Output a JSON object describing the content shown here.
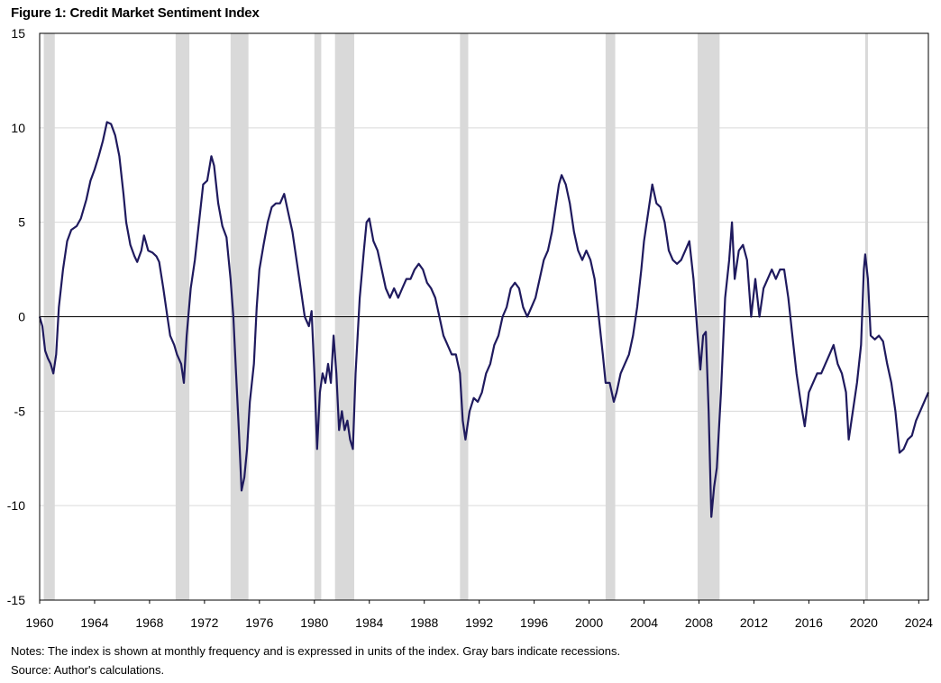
{
  "title": "Figure 1: Credit Market Sentiment Index",
  "notes": "Notes: The index is shown at monthly frequency and is expressed in units of the index. Gray bars indicate recessions.",
  "source": "Source: Author's calculations.",
  "chart_data": {
    "type": "line",
    "title": "Figure 1: Credit Market Sentiment Index",
    "xlabel": "",
    "ylabel": "",
    "xlim": [
      1960,
      2024.7
    ],
    "ylim": [
      -15,
      15
    ],
    "x_ticks": [
      "1960",
      "1964",
      "1968",
      "1972",
      "1976",
      "1980",
      "1984",
      "1988",
      "1992",
      "1996",
      "2000",
      "2004",
      "2008",
      "2012",
      "2016",
      "2020",
      "2024"
    ],
    "y_ticks": [
      "15",
      "10",
      "5",
      "0",
      "-5",
      "-10",
      "-15"
    ],
    "grid": "horizontal",
    "colors": {
      "line": "#1f1a5e",
      "recession": "#d9d9d9",
      "grid": "#d9d9d9",
      "zero": "#000000"
    },
    "recessions": [
      [
        1960.3,
        1961.1
      ],
      [
        1969.9,
        1970.9
      ],
      [
        1973.9,
        1975.2
      ],
      [
        1980.0,
        1980.5
      ],
      [
        1981.5,
        1982.9
      ],
      [
        1990.6,
        1991.2
      ],
      [
        2001.2,
        2001.9
      ],
      [
        2007.9,
        2009.5
      ],
      [
        2020.1,
        2020.3
      ]
    ],
    "series": [
      {
        "values": [
          [
            1960.0,
            0.0
          ],
          [
            1960.2,
            -0.5
          ],
          [
            1960.4,
            -1.8
          ],
          [
            1960.6,
            -2.2
          ],
          [
            1960.8,
            -2.5
          ],
          [
            1961.0,
            -3.0
          ],
          [
            1961.2,
            -2.0
          ],
          [
            1961.4,
            0.5
          ],
          [
            1961.7,
            2.5
          ],
          [
            1962.0,
            4.0
          ],
          [
            1962.3,
            4.6
          ],
          [
            1962.7,
            4.8
          ],
          [
            1963.0,
            5.2
          ],
          [
            1963.4,
            6.2
          ],
          [
            1963.7,
            7.2
          ],
          [
            1964.0,
            7.8
          ],
          [
            1964.3,
            8.5
          ],
          [
            1964.6,
            9.3
          ],
          [
            1964.9,
            10.3
          ],
          [
            1965.2,
            10.2
          ],
          [
            1965.5,
            9.6
          ],
          [
            1965.8,
            8.5
          ],
          [
            1966.1,
            6.5
          ],
          [
            1966.3,
            5.0
          ],
          [
            1966.6,
            3.8
          ],
          [
            1966.9,
            3.2
          ],
          [
            1967.1,
            2.9
          ],
          [
            1967.4,
            3.5
          ],
          [
            1967.6,
            4.3
          ],
          [
            1967.9,
            3.5
          ],
          [
            1968.2,
            3.4
          ],
          [
            1968.5,
            3.2
          ],
          [
            1968.7,
            2.9
          ],
          [
            1969.0,
            1.5
          ],
          [
            1969.3,
            0.0
          ],
          [
            1969.5,
            -1.0
          ],
          [
            1969.8,
            -1.5
          ],
          [
            1970.0,
            -2.0
          ],
          [
            1970.3,
            -2.5
          ],
          [
            1970.5,
            -3.5
          ],
          [
            1970.7,
            -1.0
          ],
          [
            1971.0,
            1.5
          ],
          [
            1971.3,
            3.0
          ],
          [
            1971.6,
            5.0
          ],
          [
            1971.9,
            7.0
          ],
          [
            1972.2,
            7.2
          ],
          [
            1972.5,
            8.5
          ],
          [
            1972.7,
            8.0
          ],
          [
            1973.0,
            6.0
          ],
          [
            1973.3,
            4.8
          ],
          [
            1973.6,
            4.2
          ],
          [
            1973.9,
            2.0
          ],
          [
            1974.1,
            0.0
          ],
          [
            1974.3,
            -3.0
          ],
          [
            1974.5,
            -6.0
          ],
          [
            1974.7,
            -9.2
          ],
          [
            1974.9,
            -8.5
          ],
          [
            1975.1,
            -7.0
          ],
          [
            1975.3,
            -4.5
          ],
          [
            1975.6,
            -2.5
          ],
          [
            1975.8,
            0.5
          ],
          [
            1976.0,
            2.5
          ],
          [
            1976.3,
            3.8
          ],
          [
            1976.6,
            5.0
          ],
          [
            1976.9,
            5.8
          ],
          [
            1977.2,
            6.0
          ],
          [
            1977.5,
            6.0
          ],
          [
            1977.8,
            6.5
          ],
          [
            1978.1,
            5.5
          ],
          [
            1978.4,
            4.5
          ],
          [
            1978.7,
            3.0
          ],
          [
            1979.0,
            1.5
          ],
          [
            1979.3,
            0.0
          ],
          [
            1979.6,
            -0.5
          ],
          [
            1979.8,
            0.3
          ],
          [
            1980.0,
            -3.0
          ],
          [
            1980.2,
            -7.0
          ],
          [
            1980.4,
            -4.0
          ],
          [
            1980.6,
            -3.0
          ],
          [
            1980.8,
            -3.5
          ],
          [
            1981.0,
            -2.5
          ],
          [
            1981.2,
            -3.5
          ],
          [
            1981.4,
            -1.0
          ],
          [
            1981.6,
            -3.0
          ],
          [
            1981.8,
            -6.0
          ],
          [
            1982.0,
            -5.0
          ],
          [
            1982.2,
            -6.0
          ],
          [
            1982.4,
            -5.5
          ],
          [
            1982.6,
            -6.5
          ],
          [
            1982.8,
            -7.0
          ],
          [
            1983.0,
            -3.0
          ],
          [
            1983.3,
            1.0
          ],
          [
            1983.6,
            3.5
          ],
          [
            1983.8,
            5.0
          ],
          [
            1984.0,
            5.2
          ],
          [
            1984.3,
            4.0
          ],
          [
            1984.6,
            3.5
          ],
          [
            1984.9,
            2.5
          ],
          [
            1985.2,
            1.5
          ],
          [
            1985.5,
            1.0
          ],
          [
            1985.8,
            1.5
          ],
          [
            1986.1,
            1.0
          ],
          [
            1986.4,
            1.5
          ],
          [
            1986.7,
            2.0
          ],
          [
            1987.0,
            2.0
          ],
          [
            1987.3,
            2.5
          ],
          [
            1987.6,
            2.8
          ],
          [
            1987.9,
            2.5
          ],
          [
            1988.2,
            1.8
          ],
          [
            1988.5,
            1.5
          ],
          [
            1988.8,
            1.0
          ],
          [
            1989.1,
            0.0
          ],
          [
            1989.4,
            -1.0
          ],
          [
            1989.7,
            -1.5
          ],
          [
            1990.0,
            -2.0
          ],
          [
            1990.3,
            -2.0
          ],
          [
            1990.6,
            -3.0
          ],
          [
            1990.8,
            -5.5
          ],
          [
            1991.0,
            -6.5
          ],
          [
            1991.3,
            -5.0
          ],
          [
            1991.6,
            -4.3
          ],
          [
            1991.9,
            -4.5
          ],
          [
            1992.2,
            -4.0
          ],
          [
            1992.5,
            -3.0
          ],
          [
            1992.8,
            -2.5
          ],
          [
            1993.1,
            -1.5
          ],
          [
            1993.4,
            -1.0
          ],
          [
            1993.7,
            0.0
          ],
          [
            1994.0,
            0.5
          ],
          [
            1994.3,
            1.5
          ],
          [
            1994.6,
            1.8
          ],
          [
            1994.9,
            1.5
          ],
          [
            1995.2,
            0.5
          ],
          [
            1995.5,
            0.0
          ],
          [
            1995.8,
            0.5
          ],
          [
            1996.1,
            1.0
          ],
          [
            1996.4,
            2.0
          ],
          [
            1996.7,
            3.0
          ],
          [
            1997.0,
            3.5
          ],
          [
            1997.3,
            4.5
          ],
          [
            1997.5,
            5.5
          ],
          [
            1997.8,
            7.0
          ],
          [
            1998.0,
            7.5
          ],
          [
            1998.3,
            7.0
          ],
          [
            1998.6,
            6.0
          ],
          [
            1998.9,
            4.5
          ],
          [
            1999.2,
            3.5
          ],
          [
            1999.5,
            3.0
          ],
          [
            1999.8,
            3.5
          ],
          [
            2000.1,
            3.0
          ],
          [
            2000.4,
            2.0
          ],
          [
            2000.7,
            0.0
          ],
          [
            2001.0,
            -2.0
          ],
          [
            2001.2,
            -3.5
          ],
          [
            2001.5,
            -3.5
          ],
          [
            2001.8,
            -4.5
          ],
          [
            2002.0,
            -4.0
          ],
          [
            2002.3,
            -3.0
          ],
          [
            2002.6,
            -2.5
          ],
          [
            2002.9,
            -2.0
          ],
          [
            2003.2,
            -1.0
          ],
          [
            2003.5,
            0.5
          ],
          [
            2003.8,
            2.5
          ],
          [
            2004.0,
            4.0
          ],
          [
            2004.3,
            5.5
          ],
          [
            2004.6,
            7.0
          ],
          [
            2004.9,
            6.0
          ],
          [
            2005.2,
            5.8
          ],
          [
            2005.5,
            5.0
          ],
          [
            2005.8,
            3.5
          ],
          [
            2006.1,
            3.0
          ],
          [
            2006.4,
            2.8
          ],
          [
            2006.7,
            3.0
          ],
          [
            2007.0,
            3.5
          ],
          [
            2007.3,
            4.0
          ],
          [
            2007.6,
            2.0
          ],
          [
            2007.9,
            -1.0
          ],
          [
            2008.1,
            -2.8
          ],
          [
            2008.3,
            -1.0
          ],
          [
            2008.5,
            -0.8
          ],
          [
            2008.7,
            -5.0
          ],
          [
            2008.9,
            -10.6
          ],
          [
            2009.1,
            -9.0
          ],
          [
            2009.3,
            -8.0
          ],
          [
            2009.6,
            -4.0
          ],
          [
            2009.9,
            1.0
          ],
          [
            2010.2,
            3.0
          ],
          [
            2010.4,
            5.0
          ],
          [
            2010.6,
            2.0
          ],
          [
            2010.9,
            3.5
          ],
          [
            2011.2,
            3.8
          ],
          [
            2011.5,
            3.0
          ],
          [
            2011.8,
            0.0
          ],
          [
            2012.1,
            2.0
          ],
          [
            2012.4,
            0.0
          ],
          [
            2012.7,
            1.5
          ],
          [
            2013.0,
            2.0
          ],
          [
            2013.3,
            2.5
          ],
          [
            2013.6,
            2.0
          ],
          [
            2013.9,
            2.5
          ],
          [
            2014.2,
            2.5
          ],
          [
            2014.5,
            1.0
          ],
          [
            2014.8,
            -1.0
          ],
          [
            2015.1,
            -3.0
          ],
          [
            2015.4,
            -4.5
          ],
          [
            2015.7,
            -5.8
          ],
          [
            2016.0,
            -4.0
          ],
          [
            2016.3,
            -3.5
          ],
          [
            2016.6,
            -3.0
          ],
          [
            2016.9,
            -3.0
          ],
          [
            2017.2,
            -2.5
          ],
          [
            2017.5,
            -2.0
          ],
          [
            2017.8,
            -1.5
          ],
          [
            2018.1,
            -2.5
          ],
          [
            2018.4,
            -3.0
          ],
          [
            2018.7,
            -4.0
          ],
          [
            2018.9,
            -6.5
          ],
          [
            2019.2,
            -5.0
          ],
          [
            2019.5,
            -3.5
          ],
          [
            2019.8,
            -1.5
          ],
          [
            2020.0,
            2.5
          ],
          [
            2020.1,
            3.3
          ],
          [
            2020.3,
            2.0
          ],
          [
            2020.5,
            -1.0
          ],
          [
            2020.8,
            -1.2
          ],
          [
            2021.1,
            -1.0
          ],
          [
            2021.4,
            -1.3
          ],
          [
            2021.7,
            -2.5
          ],
          [
            2022.0,
            -3.5
          ],
          [
            2022.3,
            -5.0
          ],
          [
            2022.6,
            -7.2
          ],
          [
            2022.9,
            -7.0
          ],
          [
            2023.2,
            -6.5
          ],
          [
            2023.5,
            -6.3
          ],
          [
            2023.8,
            -5.5
          ],
          [
            2024.1,
            -5.0
          ],
          [
            2024.4,
            -4.5
          ],
          [
            2024.7,
            -4.0
          ]
        ]
      }
    ]
  }
}
